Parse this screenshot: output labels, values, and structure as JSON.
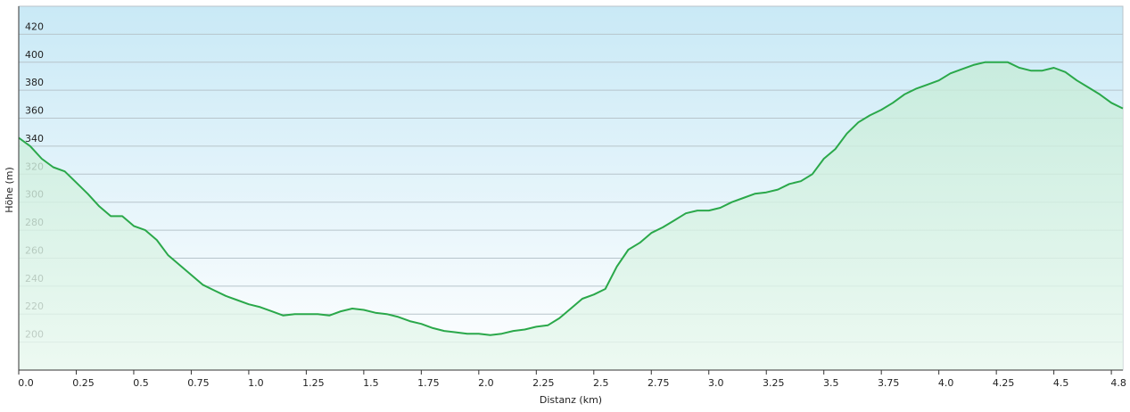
{
  "chart_data": {
    "type": "area-line",
    "xlabel": "Distanz  (km)",
    "ylabel": "Höhe (m)",
    "color": "#2aa84a",
    "grid": true,
    "xlim": [
      0,
      4.8
    ],
    "ylim": [
      180,
      440
    ],
    "xticks": [
      {
        "value": 0,
        "label": "0.0"
      },
      0.25,
      0.5,
      0.75,
      {
        "value": 1,
        "label": "1.0"
      },
      1.25,
      1.5,
      1.75,
      {
        "value": 2,
        "label": "2.0"
      },
      2.25,
      2.5,
      2.75,
      {
        "value": 3,
        "label": "3.0"
      },
      3.25,
      3.5,
      3.75,
      {
        "value": 4,
        "label": "4.0"
      },
      4.25,
      4.5,
      {
        "value": 4.75,
        "label": "4.8"
      }
    ],
    "yticks": [
      200,
      220,
      240,
      260,
      280,
      300,
      320,
      340,
      360,
      380,
      400,
      420
    ],
    "x": [
      0,
      0.05,
      0.1,
      0.15,
      0.2,
      0.25,
      0.3,
      0.35,
      0.4,
      0.45,
      0.5,
      0.55,
      0.6,
      0.65,
      0.7,
      0.75,
      0.8,
      0.85,
      0.9,
      0.95,
      1.0,
      1.05,
      1.1,
      1.15,
      1.2,
      1.25,
      1.3,
      1.35,
      1.4,
      1.45,
      1.5,
      1.55,
      1.6,
      1.65,
      1.7,
      1.75,
      1.8,
      1.85,
      1.9,
      1.95,
      2.0,
      2.05,
      2.1,
      2.15,
      2.2,
      2.25,
      2.3,
      2.35,
      2.4,
      2.45,
      2.5,
      2.55,
      2.6,
      2.65,
      2.7,
      2.75,
      2.8,
      2.85,
      2.9,
      2.95,
      3.0,
      3.05,
      3.1,
      3.15,
      3.2,
      3.25,
      3.3,
      3.35,
      3.4,
      3.45,
      3.5,
      3.55,
      3.6,
      3.65,
      3.7,
      3.75,
      3.8,
      3.85,
      3.9,
      3.95,
      4.0,
      4.05,
      4.1,
      4.15,
      4.2,
      4.25,
      4.3,
      4.35,
      4.4,
      4.45,
      4.5,
      4.55,
      4.6,
      4.65,
      4.7,
      4.75,
      4.8
    ],
    "values": [
      346,
      340,
      331,
      325,
      322,
      314,
      306,
      297,
      290,
      290,
      283,
      280,
      273,
      262,
      255,
      248,
      241,
      237,
      233,
      230,
      227,
      225,
      222,
      219,
      220,
      220,
      220,
      219,
      222,
      224,
      223,
      221,
      220,
      218,
      215,
      213,
      210,
      208,
      207,
      206,
      206,
      205,
      206,
      208,
      209,
      211,
      212,
      217,
      224,
      231,
      234,
      238,
      254,
      266,
      271,
      278,
      282,
      287,
      292,
      294,
      294,
      296,
      300,
      303,
      306,
      307,
      309,
      313,
      315,
      320,
      331,
      338,
      349,
      357,
      362,
      366,
      371,
      377,
      381,
      384,
      387,
      392,
      395,
      398,
      400,
      400,
      400,
      396,
      394,
      394,
      396,
      393,
      387,
      382,
      377,
      371,
      367
    ]
  }
}
